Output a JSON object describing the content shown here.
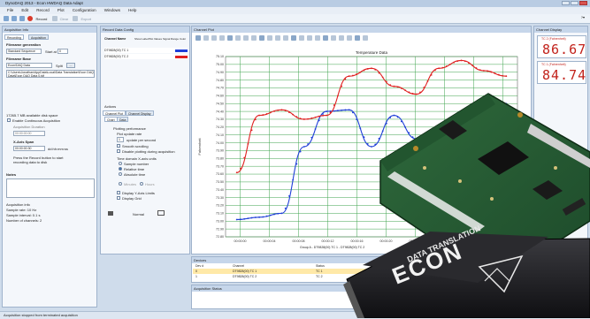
{
  "window": {
    "title": "DynoDAQ 2013 - Econ HWDAQ Data Adapt"
  },
  "menu": [
    "File",
    "Edit",
    "Record",
    "Plot",
    "Configuration",
    "Windows",
    "Help"
  ],
  "toolbar": {
    "record_label": "Record",
    "other_label": "Clear",
    "extra_label": "Export"
  },
  "acq_panel": {
    "title": "Acquisition Info",
    "tab_recording": "Recording",
    "tab_acquisition": "Acquisition",
    "filename_generation_heading": "Filename generation",
    "filename_mode": "Standard Sequence",
    "start_at_label": "Start at",
    "start_at_value": "0",
    "filename_base_heading": "Filename Base",
    "filename_base_value": "Econ/DAQ Data",
    "split_label": "Split",
    "path_value": "C:\\Users\\Jonathan\\AppData\\Local\\Data Translation\\Econ DAQ Data\\Econ DAQ Data 0.tdf",
    "free_space": "17265.7 MB available disk space",
    "enable_continuous": "Enable Continuous Acquisition",
    "acq_duration_label": "Acquisition Duration",
    "acq_duration_value": "00:00:00:00",
    "file_span_heading": "X-Axis Span",
    "file_span_value": "00:00:00:30",
    "file_span_unit": "dd:hh:mm:ss",
    "press_hint": "Press the Record button to start recording data to disk",
    "notes_heading": "Notes",
    "acq_info_heading": "Acquisition info",
    "sample_rate": "Sample rate: 10 Hz",
    "sample_interval": "Sample interval: 0.1 s",
    "channels": "Number of channels: 2"
  },
  "record_panel": {
    "title": "Record Data Config",
    "columns": [
      "Channel Name",
      "Show Label",
      "Plot Values",
      "Signal Range",
      "Color"
    ],
    "rows": [
      {
        "name": "DT9828(00) TC 1",
        "color": "#1f3fd8"
      },
      {
        "name": "DT9828(00) TC 2",
        "color": "#e02020"
      }
    ],
    "actions_label": "Actions",
    "tab_channel_plot": "Channel Plot",
    "tab_channel_display": "Channel Display",
    "subtab_chart": "Chart",
    "subtab_data": "Data",
    "plotting_performance": "Plotting performance",
    "plot_update_rate": "Plot update rate",
    "update_value": "1",
    "update_unit": "update per second",
    "smooth_scrolling": "Smooth scrolling",
    "disable_plotting": "Disable plotting during acquisition",
    "time_format": "Time domain X-axis units",
    "sample_number": "Sample number",
    "relative_time": "Relative time",
    "absolute_time": "Absolute time",
    "xaxis_label_a": "Minutes",
    "xaxis_label_b": "Hours",
    "display_yvalues": "Display Y-Axis Limits",
    "display_legend": "Display Grid",
    "bottom_left": "Normal",
    "bottom_right": "Stretched"
  },
  "plot_panel": {
    "title": "Channel Plot",
    "status": "Group A - DT9828(00) TC 1 - DT9828(00) TC 2"
  },
  "chart_data": {
    "type": "line",
    "title": "Temperature Data",
    "xlabel": "",
    "ylabel": "Fahrenheit",
    "x": [
      "00:00:01",
      "00:00:04",
      "00:00:07",
      "00:00:10",
      "00:00:13",
      "00:00:16",
      "00:00:19",
      "00:00:22",
      "00:00:25",
      "00:00:28",
      "00:00:31",
      "00:00:34",
      "00:00:37"
    ],
    "xticks": [
      "00:00:00",
      "00:00:04",
      "00:00:08",
      "00:00:12",
      "00:00:16",
      "00:00:20",
      "00:00:24",
      "00:00:28",
      "00:00:32",
      "00:00:36"
    ],
    "yticks": [
      "72.80",
      "72.90",
      "73.00",
      "73.10",
      "73.20",
      "73.30",
      "73.40",
      "73.50",
      "73.60",
      "73.70",
      "73.80",
      "73.90",
      "74.00",
      "74.10",
      "74.20",
      "74.30",
      "74.40",
      "74.50",
      "74.60",
      "74.70",
      "74.80",
      "74.90",
      "75.00",
      "75.10"
    ],
    "ylim": [
      72.8,
      75.1
    ],
    "grid": true,
    "series": [
      {
        "color": "#1f3fd8",
        "values": [
          73.02,
          73.05,
          73.1,
          73.95,
          74.4,
          74.42,
          73.95,
          74.35,
          74.05,
          73.9,
          74.4,
          74.55,
          74.5
        ]
      },
      {
        "color": "#e02020",
        "values": [
          73.62,
          74.35,
          74.42,
          74.3,
          74.35,
          74.85,
          74.95,
          74.72,
          74.62,
          74.95,
          75.05,
          74.92,
          74.85
        ]
      }
    ]
  },
  "display_panel": {
    "title": "Channel Display",
    "tc2_label": "TC 2 (Fahrenheit)",
    "tc2_value": "86.67",
    "tc1_label": "TC 1 (Fahrenheit)",
    "tc1_value": "84.74"
  },
  "device_panel": {
    "title": "Devices",
    "columns": [
      "Dev #",
      "Channel",
      "Status"
    ],
    "rows": [
      {
        "id": "0",
        "channel": "DT9828(00) TC 1",
        "status": "TC 1"
      },
      {
        "id": "1",
        "channel": "DT9828(00) TC 2",
        "status": "TC 2"
      }
    ]
  },
  "acq_status_panel": {
    "title": "Acquisition Status"
  },
  "device_brand": "ECON",
  "device_sub": "DATA TRANSLATION",
  "statusbar": {
    "text": "Acquisition stopped from terminated acquisition"
  }
}
